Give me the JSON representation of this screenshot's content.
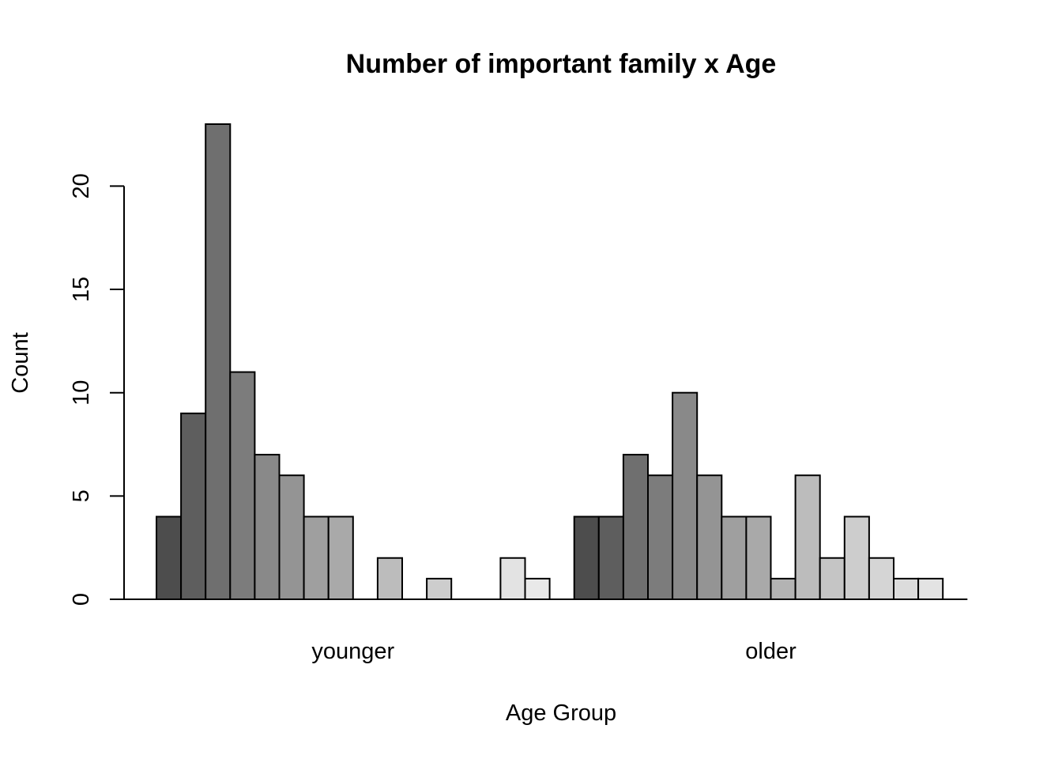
{
  "chart_data": {
    "type": "bar",
    "layout": "grouped",
    "title": "Number of important family x Age",
    "xlabel": "Age Group",
    "ylabel": "Count",
    "categories": [
      "younger",
      "older"
    ],
    "ylim": [
      0,
      23
    ],
    "yticks": [
      0,
      5,
      10,
      15,
      20
    ],
    "grid": false,
    "legend": "none",
    "bars_per_group": 16,
    "series_colors": [
      "#4d4d4d",
      "#5e5e5e",
      "#6f6f6f",
      "#7c7c7c",
      "#898989",
      "#949494",
      "#9f9f9f",
      "#a9a9a9",
      "#b3b3b3",
      "#bcbcbc",
      "#c5c5c5",
      "#cdcdcd",
      "#d5d5d5",
      "#dcdcdc",
      "#e3e3e3",
      "#e9e9e9"
    ],
    "groups": [
      {
        "label": "younger",
        "values": [
          4,
          9,
          23,
          11,
          7,
          6,
          4,
          4,
          0,
          2,
          0,
          1,
          0,
          0,
          2,
          1
        ]
      },
      {
        "label": "older",
        "values": [
          4,
          4,
          7,
          6,
          10,
          6,
          4,
          4,
          1,
          6,
          2,
          4,
          2,
          1,
          1,
          0
        ]
      }
    ]
  }
}
